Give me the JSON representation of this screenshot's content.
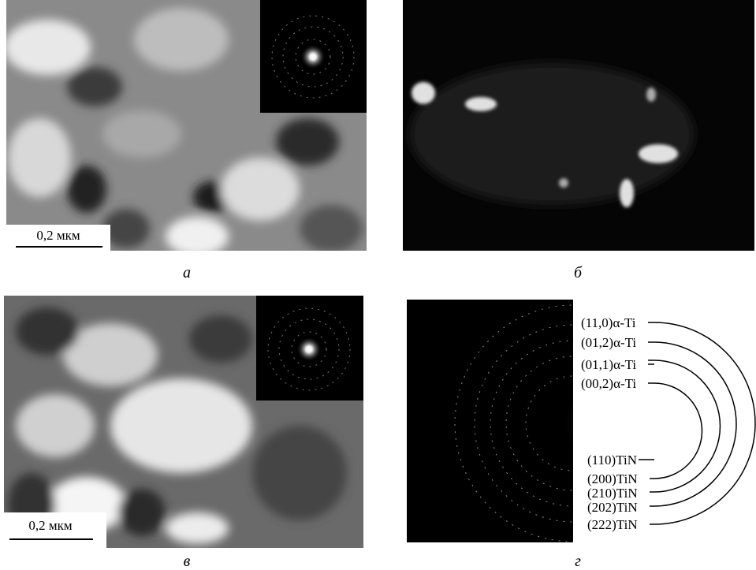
{
  "panels": [
    {
      "letter": "а",
      "scale_bar": "0,2 мкм"
    },
    {
      "letter": "б"
    },
    {
      "letter": "в",
      "scale_bar": "0,2 мкм"
    },
    {
      "letter": "г",
      "rings_alpha_ti": [
        "(11,0)α-Ti",
        "(01,2)α-Ti",
        "(01,1)α-Ti",
        "(00,2)α-Ti"
      ],
      "rings_tin": [
        "(110)TiN",
        "(200)TiN",
        "(210)TiN",
        "(202)TiN",
        "(222)TiN"
      ]
    }
  ]
}
